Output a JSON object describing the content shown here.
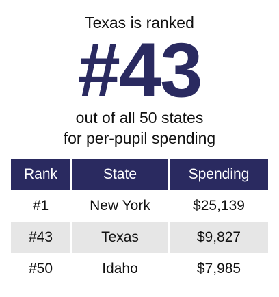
{
  "headline": {
    "top": "Texas is ranked",
    "rank": "#43",
    "sub_line1": "out of all 50 states",
    "sub_line2": "for per-pupil spending"
  },
  "table": {
    "headers": [
      "Rank",
      "State",
      "Spending"
    ],
    "rows": [
      [
        "#1",
        "New York",
        "$25,139"
      ],
      [
        "#43",
        "Texas",
        "$9,827"
      ],
      [
        "#50",
        "Idaho",
        "$7,985"
      ]
    ]
  },
  "colors": {
    "accent": "#2a2a60",
    "row_shade": "#e6e6e6"
  }
}
